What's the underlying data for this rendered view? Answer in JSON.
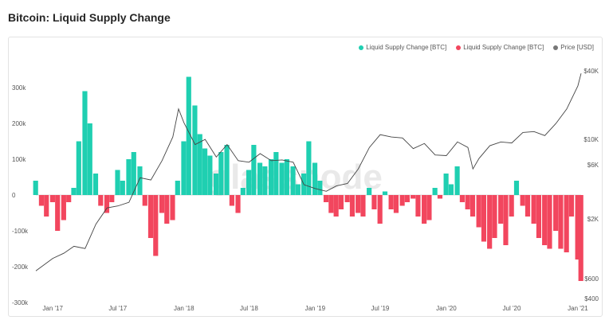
{
  "title": "Bitcoin: Liquid Supply Change",
  "watermark": "glassnode",
  "colors": {
    "positive": "#1fcfb1",
    "negative": "#f2465e",
    "price": "#444444"
  },
  "legend": [
    {
      "label": "Liquid Supply Change [BTC]",
      "color": "#1fcfb1"
    },
    {
      "label": "Liquid Supply Change [BTC]",
      "color": "#f2465e"
    },
    {
      "label": "Price [USD]",
      "color": "#777777"
    }
  ],
  "chart_data": {
    "type": "area",
    "x_ticks": [
      "Jan '17",
      "Jul '17",
      "Jan '18",
      "Jul '18",
      "Jan '19",
      "Jul '19",
      "Jan '20",
      "Jul '20",
      "Jan '21"
    ],
    "y_left": {
      "ticks": [
        "300k",
        "200k",
        "100k",
        "0",
        "-100k",
        "-200k",
        "-300k"
      ],
      "values": [
        300000,
        200000,
        100000,
        0,
        -100000,
        -200000,
        -300000
      ]
    },
    "y_right": {
      "scale": "log",
      "ticks": [
        "$40K",
        "$10K",
        "$6K",
        "$2K",
        "$600",
        "$400"
      ],
      "values": [
        40000,
        10000,
        6000,
        2000,
        600,
        400
      ]
    },
    "liquid_supply_change": {
      "x": [
        "2016-11-15",
        "2016-12-01",
        "2016-12-15",
        "2017-01-01",
        "2017-01-15",
        "2017-02-01",
        "2017-02-15",
        "2017-03-01",
        "2017-03-15",
        "2017-04-01",
        "2017-04-15",
        "2017-05-01",
        "2017-05-15",
        "2017-06-01",
        "2017-06-15",
        "2017-07-01",
        "2017-07-15",
        "2017-08-01",
        "2017-08-15",
        "2017-09-01",
        "2017-09-15",
        "2017-10-01",
        "2017-10-15",
        "2017-11-01",
        "2017-11-15",
        "2017-12-01",
        "2017-12-15",
        "2018-01-01",
        "2018-01-15",
        "2018-02-01",
        "2018-02-15",
        "2018-03-01",
        "2018-03-15",
        "2018-04-01",
        "2018-04-15",
        "2018-05-01",
        "2018-05-15",
        "2018-06-01",
        "2018-06-15",
        "2018-07-01",
        "2018-07-15",
        "2018-08-01",
        "2018-08-15",
        "2018-09-01",
        "2018-09-15",
        "2018-10-01",
        "2018-10-15",
        "2018-11-01",
        "2018-11-15",
        "2018-12-01",
        "2018-12-15",
        "2019-01-01",
        "2019-01-15",
        "2019-02-01",
        "2019-02-15",
        "2019-03-01",
        "2019-03-15",
        "2019-04-01",
        "2019-04-15",
        "2019-05-01",
        "2019-05-15",
        "2019-06-01",
        "2019-06-15",
        "2019-07-01",
        "2019-07-15",
        "2019-08-01",
        "2019-08-15",
        "2019-09-01",
        "2019-09-15",
        "2019-10-01",
        "2019-10-15",
        "2019-11-01",
        "2019-11-15",
        "2019-12-01",
        "2019-12-15",
        "2020-01-01",
        "2020-01-15",
        "2020-02-01",
        "2020-02-15",
        "2020-03-01",
        "2020-03-15",
        "2020-04-01",
        "2020-04-15",
        "2020-05-01",
        "2020-05-15",
        "2020-06-01",
        "2020-06-15",
        "2020-07-01",
        "2020-07-15",
        "2020-08-01",
        "2020-08-15",
        "2020-09-01",
        "2020-09-15",
        "2020-10-01",
        "2020-10-15",
        "2020-11-01",
        "2020-11-15",
        "2020-12-01",
        "2020-12-15",
        "2021-01-01",
        "2021-01-10"
      ],
      "values": [
        40000,
        -30000,
        -60000,
        -20000,
        -100000,
        -70000,
        -20000,
        20000,
        150000,
        290000,
        200000,
        60000,
        -30000,
        -50000,
        -20000,
        70000,
        40000,
        100000,
        120000,
        80000,
        -30000,
        -120000,
        -170000,
        -50000,
        -80000,
        -70000,
        40000,
        150000,
        330000,
        250000,
        170000,
        130000,
        110000,
        60000,
        120000,
        140000,
        -30000,
        -50000,
        20000,
        70000,
        140000,
        90000,
        80000,
        100000,
        120000,
        90000,
        100000,
        80000,
        30000,
        60000,
        150000,
        90000,
        40000,
        -20000,
        -50000,
        -60000,
        -40000,
        -20000,
        -60000,
        -50000,
        -60000,
        20000,
        -40000,
        -80000,
        10000,
        -40000,
        -50000,
        -30000,
        -20000,
        -10000,
        -60000,
        -80000,
        -70000,
        20000,
        -10000,
        60000,
        30000,
        80000,
        -20000,
        -40000,
        -60000,
        -90000,
        -130000,
        -150000,
        -120000,
        -80000,
        -140000,
        -60000,
        40000,
        -30000,
        -60000,
        -80000,
        -120000,
        -140000,
        -150000,
        -100000,
        -150000,
        -160000,
        -60000,
        -180000,
        -240000
      ]
    },
    "price_usd": {
      "x": [
        "2016-11-15",
        "2017-01-01",
        "2017-02-01",
        "2017-03-01",
        "2017-04-01",
        "2017-05-01",
        "2017-06-01",
        "2017-07-01",
        "2017-08-01",
        "2017-09-01",
        "2017-10-01",
        "2017-11-01",
        "2017-12-01",
        "2017-12-17",
        "2018-01-01",
        "2018-02-01",
        "2018-03-01",
        "2018-04-01",
        "2018-05-01",
        "2018-06-01",
        "2018-07-01",
        "2018-08-01",
        "2018-09-01",
        "2018-10-01",
        "2018-11-01",
        "2018-12-01",
        "2019-01-01",
        "2019-02-01",
        "2019-03-01",
        "2019-04-01",
        "2019-05-01",
        "2019-06-01",
        "2019-07-01",
        "2019-08-01",
        "2019-09-01",
        "2019-10-01",
        "2019-11-01",
        "2019-12-01",
        "2020-01-01",
        "2020-02-01",
        "2020-03-01",
        "2020-03-15",
        "2020-04-01",
        "2020-05-01",
        "2020-06-01",
        "2020-07-01",
        "2020-08-01",
        "2020-09-01",
        "2020-10-01",
        "2020-11-01",
        "2020-12-01",
        "2021-01-01",
        "2021-01-10"
      ],
      "values": [
        700,
        900,
        1000,
        1150,
        1100,
        1800,
        2500,
        2600,
        2800,
        4600,
        4400,
        6500,
        10500,
        18500,
        14000,
        9000,
        10000,
        7000,
        9000,
        6500,
        6300,
        7500,
        6500,
        6600,
        6300,
        4000,
        3700,
        3500,
        3900,
        4100,
        5500,
        8500,
        11000,
        10500,
        10300,
        8300,
        9200,
        7300,
        7200,
        9500,
        8500,
        5500,
        6800,
        8800,
        9500,
        9300,
        11500,
        11700,
        10800,
        13800,
        18500,
        29500,
        38000
      ]
    }
  }
}
